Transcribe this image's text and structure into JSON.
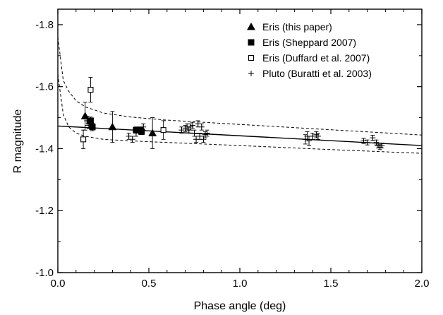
{
  "chart_data": {
    "type": "scatter",
    "xlabel": "Phase angle (deg)",
    "ylabel": "R magnitude",
    "xlim": [
      0.0,
      2.0
    ],
    "ylim": [
      -1.0,
      -1.85
    ],
    "y_axis_inverted": true,
    "x_ticks": [
      0.0,
      0.5,
      1.0,
      1.5,
      2.0
    ],
    "x_tick_labels": [
      "0.0",
      "0.5",
      "1.0",
      "1.5",
      "2.0"
    ],
    "y_ticks": [
      -1.0,
      -1.2,
      -1.4,
      -1.6,
      -1.8
    ],
    "y_tick_labels": [
      "-1.0",
      "-1.2",
      "-1.4",
      "-1.6",
      "-1.8"
    ],
    "grid": false,
    "legend_position": "top-right",
    "series": [
      {
        "name": "Eris (this paper)",
        "marker": "filled-triangle",
        "points": [
          {
            "x": 0.15,
            "y": -1.505,
            "err": 0.045
          },
          {
            "x": 0.3,
            "y": -1.47,
            "err": 0.05
          },
          {
            "x": 0.52,
            "y": -1.45,
            "err": 0.05
          }
        ]
      },
      {
        "name": "Eris (Sheppard 2007)",
        "marker": "filled-square",
        "points": [
          {
            "x": 0.18,
            "y": -1.49,
            "err": 0.012
          },
          {
            "x": 0.19,
            "y": -1.47,
            "err": 0.012
          },
          {
            "x": 0.43,
            "y": -1.46,
            "err": 0.01
          },
          {
            "x": 0.45,
            "y": -1.46,
            "err": 0.01
          },
          {
            "x": 0.46,
            "y": -1.455,
            "err": 0.01
          }
        ]
      },
      {
        "name": "Eris (Duffard et al. 2007)",
        "marker": "open-square",
        "points": [
          {
            "x": 0.14,
            "y": -1.43,
            "err": 0.03
          },
          {
            "x": 0.18,
            "y": -1.59,
            "err": 0.04
          },
          {
            "x": 0.58,
            "y": -1.46,
            "err": 0.03
          }
        ]
      },
      {
        "name": "Pluto (Buratti et al. 2003)",
        "marker": "plus",
        "points": [
          {
            "x": 0.16,
            "y": -1.49,
            "err": 0.015
          },
          {
            "x": 0.17,
            "y": -1.48,
            "err": 0.015
          },
          {
            "x": 0.39,
            "y": -1.44,
            "err": 0.01
          },
          {
            "x": 0.41,
            "y": -1.43,
            "err": 0.01
          },
          {
            "x": 0.43,
            "y": -1.45,
            "err": 0.01
          },
          {
            "x": 0.47,
            "y": -1.47,
            "err": 0.01
          },
          {
            "x": 0.68,
            "y": -1.46,
            "err": 0.01
          },
          {
            "x": 0.7,
            "y": -1.465,
            "err": 0.01
          },
          {
            "x": 0.71,
            "y": -1.47,
            "err": 0.01
          },
          {
            "x": 0.72,
            "y": -1.46,
            "err": 0.01
          },
          {
            "x": 0.73,
            "y": -1.47,
            "err": 0.01
          },
          {
            "x": 0.74,
            "y": -1.475,
            "err": 0.01
          },
          {
            "x": 0.75,
            "y": -1.45,
            "err": 0.01
          },
          {
            "x": 0.76,
            "y": -1.43,
            "err": 0.01
          },
          {
            "x": 0.77,
            "y": -1.48,
            "err": 0.01
          },
          {
            "x": 0.78,
            "y": -1.44,
            "err": 0.01
          },
          {
            "x": 0.79,
            "y": -1.47,
            "err": 0.01
          },
          {
            "x": 0.8,
            "y": -1.43,
            "err": 0.01
          },
          {
            "x": 0.81,
            "y": -1.445,
            "err": 0.01
          },
          {
            "x": 0.82,
            "y": -1.45,
            "err": 0.01
          },
          {
            "x": 1.36,
            "y": -1.43,
            "err": 0.015
          },
          {
            "x": 1.37,
            "y": -1.44,
            "err": 0.015
          },
          {
            "x": 1.38,
            "y": -1.425,
            "err": 0.015
          },
          {
            "x": 1.4,
            "y": -1.44,
            "err": 0.01
          },
          {
            "x": 1.42,
            "y": -1.445,
            "err": 0.01
          },
          {
            "x": 1.43,
            "y": -1.44,
            "err": 0.01
          },
          {
            "x": 1.68,
            "y": -1.425,
            "err": 0.008
          },
          {
            "x": 1.7,
            "y": -1.42,
            "err": 0.008
          },
          {
            "x": 1.73,
            "y": -1.435,
            "err": 0.008
          },
          {
            "x": 1.75,
            "y": -1.42,
            "err": 0.008
          },
          {
            "x": 1.76,
            "y": -1.41,
            "err": 0.008
          },
          {
            "x": 1.77,
            "y": -1.405,
            "err": 0.008
          },
          {
            "x": 1.78,
            "y": -1.41,
            "err": 0.008
          }
        ]
      }
    ],
    "fit_lines": [
      {
        "style": "solid",
        "points": [
          [
            0.0,
            -1.473
          ],
          [
            2.0,
            -1.41
          ]
        ]
      },
      {
        "style": "dashed",
        "points": [
          [
            0.0,
            -1.76
          ],
          [
            0.03,
            -1.62
          ],
          [
            0.06,
            -1.585
          ],
          [
            0.1,
            -1.555
          ],
          [
            0.15,
            -1.535
          ],
          [
            0.25,
            -1.515
          ],
          [
            0.4,
            -1.502
          ],
          [
            0.6,
            -1.492
          ],
          [
            1.0,
            -1.478
          ],
          [
            1.5,
            -1.461
          ],
          [
            2.0,
            -1.444
          ]
        ]
      },
      {
        "style": "dashed",
        "points": [
          [
            0.0,
            -1.64
          ],
          [
            0.03,
            -1.51
          ],
          [
            0.06,
            -1.47
          ],
          [
            0.1,
            -1.45
          ],
          [
            0.15,
            -1.44
          ],
          [
            0.25,
            -1.43
          ],
          [
            0.4,
            -1.425
          ],
          [
            0.6,
            -1.42
          ],
          [
            1.0,
            -1.41
          ],
          [
            1.5,
            -1.397
          ],
          [
            2.0,
            -1.385
          ]
        ]
      }
    ]
  }
}
